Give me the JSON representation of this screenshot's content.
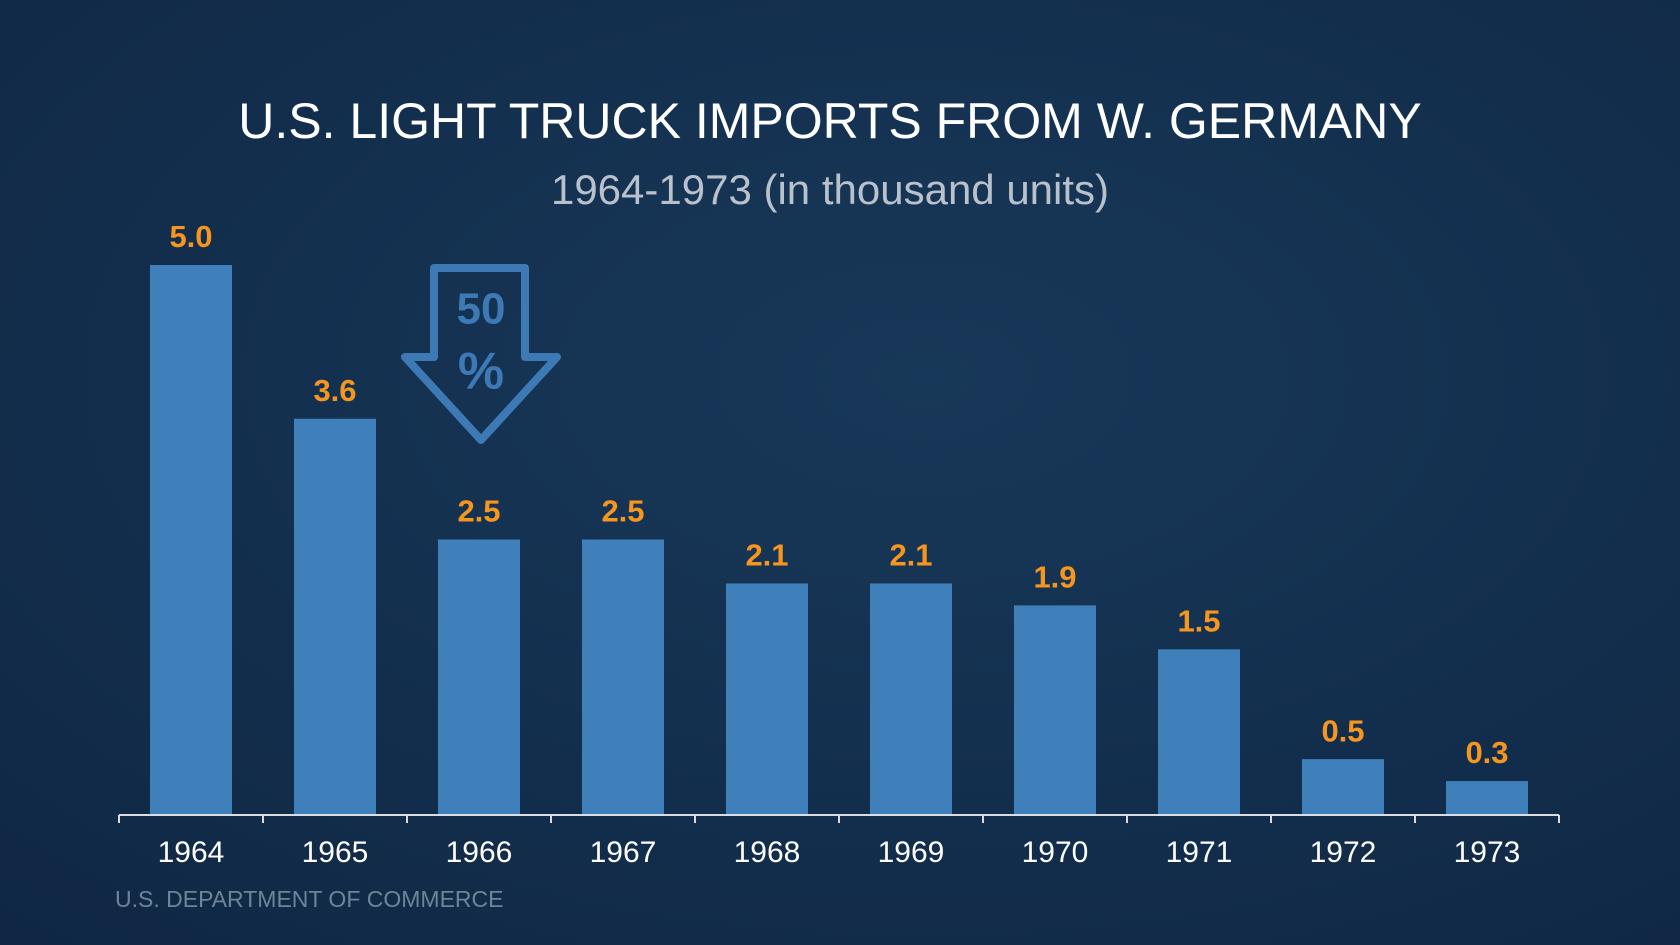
{
  "chart_data": {
    "type": "bar",
    "title": "U.S. LIGHT TRUCK IMPORTS FROM W. GERMANY",
    "subtitle": "1964-1973 (in thousand units)",
    "categories": [
      "1964",
      "1965",
      "1966",
      "1967",
      "1968",
      "1969",
      "1970",
      "1971",
      "1972",
      "1973"
    ],
    "values": [
      5.0,
      3.6,
      2.5,
      2.5,
      2.1,
      2.1,
      1.9,
      1.5,
      0.5,
      0.3
    ],
    "value_labels": [
      "5.0",
      "3.6",
      "2.5",
      "2.5",
      "2.1",
      "2.1",
      "1.9",
      "1.5",
      "0.5",
      "0.3"
    ],
    "color": "#3f7fba",
    "label_color": "#f7961f",
    "annotation_number": "50",
    "annotation_symbol": "%",
    "source": "U.S. DEPARTMENT OF COMMERCE"
  }
}
